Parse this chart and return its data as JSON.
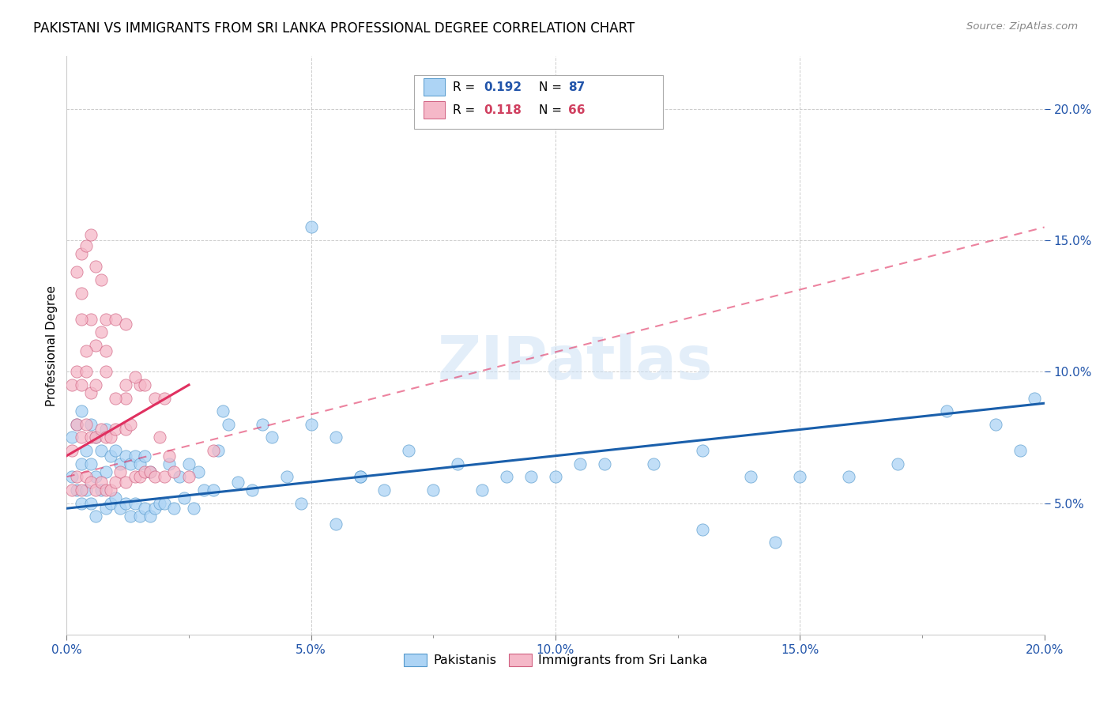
{
  "title": "PAKISTANI VS IMMIGRANTS FROM SRI LANKA PROFESSIONAL DEGREE CORRELATION CHART",
  "source": "Source: ZipAtlas.com",
  "ylabel": "Professional Degree",
  "xlim": [
    0.0,
    0.2
  ],
  "ylim": [
    0.0,
    0.22
  ],
  "xtick_labels": [
    "0.0%",
    "",
    "5.0%",
    "",
    "10.0%",
    "",
    "15.0%",
    "",
    "20.0%"
  ],
  "xtick_vals": [
    0.0,
    0.025,
    0.05,
    0.075,
    0.1,
    0.125,
    0.15,
    0.175,
    0.2
  ],
  "ytick_labels": [
    "5.0%",
    "10.0%",
    "15.0%",
    "20.0%"
  ],
  "ytick_vals": [
    0.05,
    0.1,
    0.15,
    0.2
  ],
  "blue_color": "#ADD4F5",
  "pink_color": "#F5B8C8",
  "blue_edge_color": "#5599CC",
  "pink_edge_color": "#D06080",
  "blue_line_color": "#1A5FAB",
  "pink_line_color": "#E03060",
  "watermark": "ZIPatlas",
  "blue_scatter_x": [
    0.001,
    0.001,
    0.002,
    0.002,
    0.003,
    0.003,
    0.003,
    0.004,
    0.004,
    0.005,
    0.005,
    0.005,
    0.006,
    0.006,
    0.006,
    0.007,
    0.007,
    0.008,
    0.008,
    0.008,
    0.009,
    0.009,
    0.01,
    0.01,
    0.011,
    0.011,
    0.012,
    0.012,
    0.013,
    0.013,
    0.014,
    0.014,
    0.015,
    0.015,
    0.016,
    0.016,
    0.017,
    0.017,
    0.018,
    0.019,
    0.02,
    0.021,
    0.022,
    0.023,
    0.024,
    0.025,
    0.026,
    0.027,
    0.028,
    0.03,
    0.031,
    0.032,
    0.033,
    0.035,
    0.038,
    0.04,
    0.042,
    0.045,
    0.048,
    0.05,
    0.055,
    0.06,
    0.065,
    0.07,
    0.075,
    0.08,
    0.085,
    0.09,
    0.095,
    0.1,
    0.105,
    0.11,
    0.12,
    0.13,
    0.14,
    0.15,
    0.16,
    0.17,
    0.18,
    0.19,
    0.195,
    0.198,
    0.05,
    0.06,
    0.055,
    0.13,
    0.145
  ],
  "blue_scatter_y": [
    0.06,
    0.075,
    0.055,
    0.08,
    0.05,
    0.065,
    0.085,
    0.055,
    0.07,
    0.05,
    0.065,
    0.08,
    0.045,
    0.06,
    0.075,
    0.055,
    0.07,
    0.048,
    0.062,
    0.078,
    0.05,
    0.068,
    0.052,
    0.07,
    0.048,
    0.065,
    0.05,
    0.068,
    0.045,
    0.065,
    0.05,
    0.068,
    0.045,
    0.065,
    0.048,
    0.068,
    0.045,
    0.062,
    0.048,
    0.05,
    0.05,
    0.065,
    0.048,
    0.06,
    0.052,
    0.065,
    0.048,
    0.062,
    0.055,
    0.055,
    0.07,
    0.085,
    0.08,
    0.058,
    0.055,
    0.08,
    0.075,
    0.06,
    0.05,
    0.08,
    0.075,
    0.06,
    0.055,
    0.07,
    0.055,
    0.065,
    0.055,
    0.06,
    0.06,
    0.06,
    0.065,
    0.065,
    0.065,
    0.07,
    0.06,
    0.06,
    0.06,
    0.065,
    0.085,
    0.08,
    0.07,
    0.09,
    0.155,
    0.06,
    0.042,
    0.04,
    0.035
  ],
  "pink_scatter_x": [
    0.001,
    0.001,
    0.001,
    0.002,
    0.002,
    0.002,
    0.003,
    0.003,
    0.003,
    0.004,
    0.004,
    0.004,
    0.005,
    0.005,
    0.005,
    0.006,
    0.006,
    0.006,
    0.007,
    0.007,
    0.008,
    0.008,
    0.009,
    0.009,
    0.01,
    0.01,
    0.011,
    0.012,
    0.012,
    0.013,
    0.014,
    0.015,
    0.016,
    0.017,
    0.018,
    0.019,
    0.02,
    0.021,
    0.022,
    0.025,
    0.03,
    0.012,
    0.005,
    0.006,
    0.007,
    0.003,
    0.004,
    0.008,
    0.015,
    0.018,
    0.02,
    0.01,
    0.003,
    0.004,
    0.005,
    0.006,
    0.007,
    0.008,
    0.01,
    0.012,
    0.014,
    0.016,
    0.002,
    0.003,
    0.008,
    0.012
  ],
  "pink_scatter_y": [
    0.055,
    0.07,
    0.095,
    0.06,
    0.08,
    0.1,
    0.055,
    0.075,
    0.095,
    0.06,
    0.08,
    0.1,
    0.058,
    0.075,
    0.092,
    0.055,
    0.075,
    0.095,
    0.058,
    0.078,
    0.055,
    0.075,
    0.055,
    0.075,
    0.058,
    0.078,
    0.062,
    0.058,
    0.078,
    0.08,
    0.06,
    0.06,
    0.062,
    0.062,
    0.06,
    0.075,
    0.06,
    0.068,
    0.062,
    0.06,
    0.07,
    0.09,
    0.12,
    0.11,
    0.115,
    0.12,
    0.108,
    0.108,
    0.095,
    0.09,
    0.09,
    0.09,
    0.145,
    0.148,
    0.152,
    0.14,
    0.135,
    0.12,
    0.12,
    0.118,
    0.098,
    0.095,
    0.138,
    0.13,
    0.1,
    0.095
  ],
  "blue_line_x": [
    0.0,
    0.2
  ],
  "blue_line_y": [
    0.048,
    0.088
  ],
  "pink_solid_line_x": [
    0.0,
    0.025
  ],
  "pink_solid_line_y": [
    0.068,
    0.095
  ],
  "pink_dash_line_x": [
    0.0,
    0.2
  ],
  "pink_dash_line_y": [
    0.06,
    0.155
  ]
}
